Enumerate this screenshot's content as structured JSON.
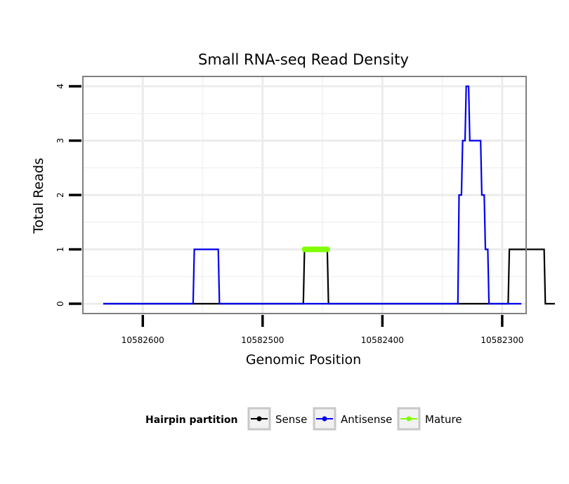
{
  "chart_data": {
    "type": "line",
    "title": "Small RNA-seq Read Density",
    "xlabel": "Genomic Position",
    "ylabel": "Total Reads",
    "x_reversed": true,
    "xlim": [
      10582650,
      10582280
    ],
    "ylim": [
      -0.18,
      4.18
    ],
    "x_ticks": [
      10582600,
      10582500,
      10582400,
      10582300
    ],
    "x_tick_labels": [
      "10582600",
      "10582500",
      "10582400",
      "10582300"
    ],
    "y_ticks": [
      0,
      1,
      2,
      3,
      4
    ],
    "y_tick_labels": [
      "0",
      "1",
      "2",
      "3",
      "4"
    ],
    "grid": true,
    "legend": {
      "title": "Hairpin partition",
      "position": "bottom",
      "entries": [
        {
          "label": "Sense",
          "color": "#000000"
        },
        {
          "label": "Antisense",
          "color": "#0000ee"
        },
        {
          "label": "Mature",
          "color": "#7fff00"
        }
      ]
    },
    "series": [
      {
        "name": "Sense",
        "color": "#000000",
        "x": [
          10582633,
          10582466,
          10582465,
          10582446,
          10582445,
          10582295,
          10582294,
          10582289,
          10582288,
          10582265,
          10582264,
          10582256
        ],
        "y": [
          0,
          0,
          1,
          1,
          0,
          0,
          1,
          1,
          1,
          1,
          0,
          0
        ]
      },
      {
        "name": "Antisense",
        "color": "#0000ee",
        "x": [
          10582633,
          10582558,
          10582557,
          10582537,
          10582536,
          10582337,
          10582336,
          10582334,
          10582333,
          10582331,
          10582330,
          10582328,
          10582327,
          10582318,
          10582317,
          10582315,
          10582314,
          10582312,
          10582311,
          10582296,
          10582295,
          10582284
        ],
        "y": [
          0,
          0,
          1,
          1,
          0,
          0,
          2,
          2,
          3,
          3,
          4,
          4,
          3,
          3,
          2,
          2,
          1,
          1,
          0,
          0,
          0,
          0
        ]
      },
      {
        "name": "Mature",
        "color": "#7fff00",
        "x": [
          10582465,
          10582446
        ],
        "y": [
          1,
          1
        ]
      }
    ]
  }
}
